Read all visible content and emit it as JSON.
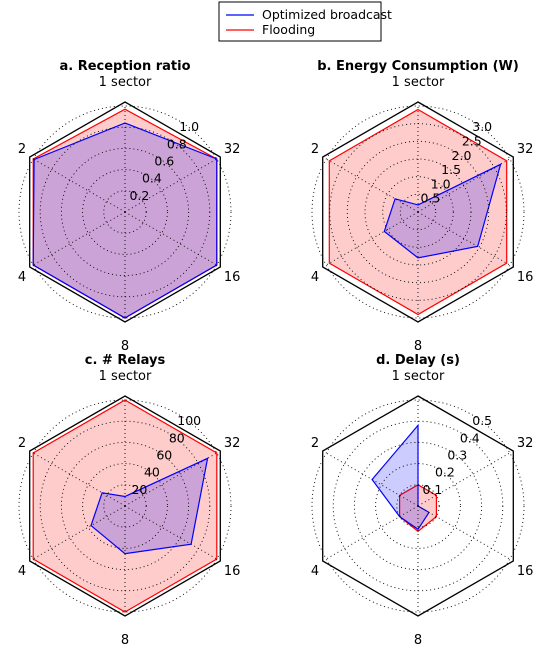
{
  "legend": {
    "placement": "top-center",
    "items": [
      {
        "label": "Optimized broadcast",
        "color": "#0000ff"
      },
      {
        "label": "Flooding",
        "color": "#ff0000"
      }
    ]
  },
  "chart_data": [
    {
      "type": "radar",
      "panel": "a",
      "title": "a. Reception ratio",
      "axes": [
        "1 sector",
        "32",
        "16",
        "8",
        "4",
        "2"
      ],
      "rlim": [
        0,
        1.0
      ],
      "rticks": [
        "0.2",
        "0.4",
        "0.6",
        "0.8",
        "1.0"
      ],
      "rtick_values": [
        0.2,
        0.4,
        0.6,
        0.8,
        1.0
      ],
      "grid": true,
      "series": [
        {
          "name": "Optimized broadcast",
          "color": "#0000ff",
          "values": [
            0.84,
            1.0,
            1.0,
            1.0,
            1.0,
            0.99
          ]
        },
        {
          "name": "Flooding",
          "color": "#ff0000",
          "values": [
            0.97,
            1.0,
            1.0,
            1.0,
            1.0,
            1.0
          ]
        }
      ]
    },
    {
      "type": "radar",
      "panel": "b",
      "title": "b. Energy Consumption (W)",
      "axes": [
        "1 sector",
        "32",
        "16",
        "8",
        "4",
        "2"
      ],
      "rlim": [
        0,
        3.0
      ],
      "rticks": [
        "0.5",
        "1.0",
        "1.5",
        "2.0",
        "2.5",
        "3.0"
      ],
      "rtick_values": [
        0.5,
        1.0,
        1.5,
        2.0,
        2.5,
        3.0
      ],
      "grid": true,
      "series": [
        {
          "name": "Optimized broadcast",
          "color": "#0000ff",
          "values": [
            0.2,
            2.7,
            1.95,
            1.3,
            1.1,
            0.75
          ]
        },
        {
          "name": "Flooding",
          "color": "#ff0000",
          "values": [
            2.9,
            2.9,
            2.9,
            2.9,
            2.9,
            2.9
          ]
        }
      ]
    },
    {
      "type": "radar",
      "panel": "c",
      "title": "c. # Relays",
      "axes": [
        "1 sector",
        "32",
        "16",
        "8",
        "4",
        "2"
      ],
      "rlim": [
        0,
        100
      ],
      "rticks": [
        "20",
        "40",
        "60",
        "80",
        "100"
      ],
      "rtick_values": [
        20,
        40,
        60,
        80,
        100
      ],
      "grid": true,
      "series": [
        {
          "name": "Optimized broadcast",
          "color": "#0000ff",
          "values": [
            9,
            90,
            72,
            45,
            37,
            25
          ]
        },
        {
          "name": "Flooding",
          "color": "#ff0000",
          "values": [
            100,
            100,
            100,
            100,
            100,
            100
          ]
        }
      ]
    },
    {
      "type": "radar",
      "panel": "d",
      "title": "d. Delay (s)",
      "axes": [
        "1 sector",
        "32",
        "16",
        "8",
        "4",
        "2"
      ],
      "rlim": [
        0,
        0.5
      ],
      "rticks": [
        "0.1",
        "0.2",
        "0.3",
        "0.4",
        "0.5"
      ],
      "rtick_values": [
        0.1,
        0.2,
        0.3,
        0.4,
        0.5
      ],
      "grid": true,
      "series": [
        {
          "name": "Optimized broadcast",
          "color": "#0000ff",
          "values": [
            0.38,
            0.0,
            0.06,
            0.11,
            0.1,
            0.25
          ]
        },
        {
          "name": "Flooding",
          "color": "#ff0000",
          "values": [
            0.1,
            0.1,
            0.1,
            0.12,
            0.1,
            0.1
          ]
        }
      ]
    }
  ]
}
